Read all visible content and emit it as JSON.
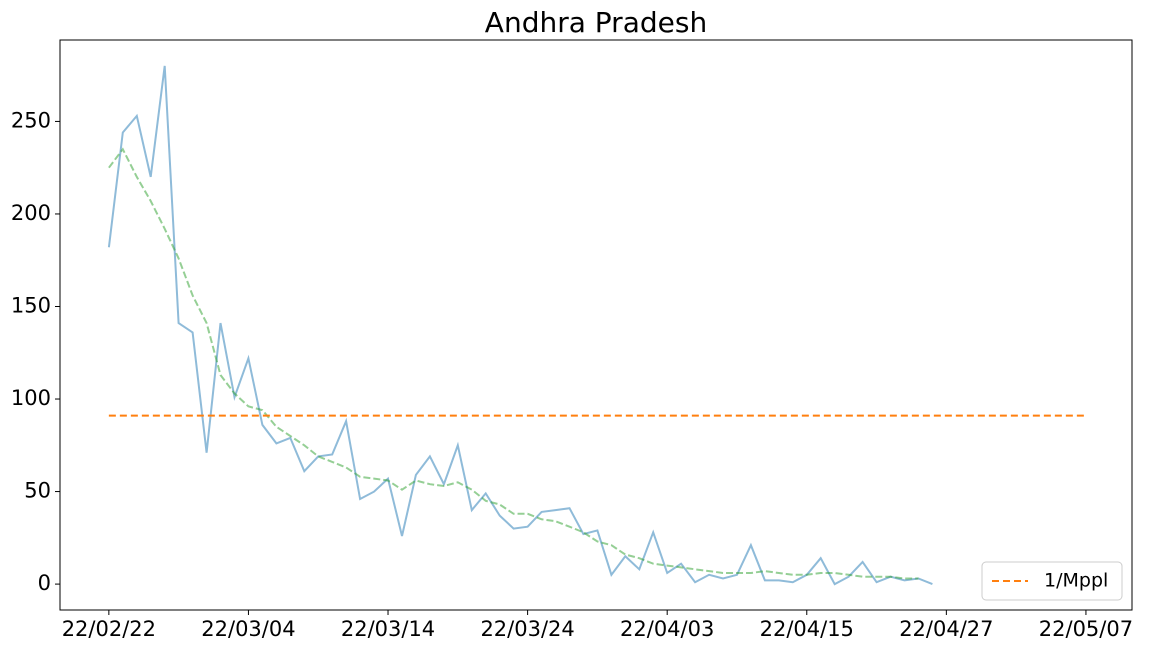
{
  "chart_data": {
    "type": "line",
    "title": "Andhra Pradesh",
    "x": [
      0,
      1,
      2,
      3,
      4,
      5,
      6,
      7,
      8,
      9,
      10,
      11,
      12,
      13,
      14,
      15,
      16,
      17,
      18,
      19,
      20,
      21,
      22,
      23,
      24,
      25,
      26,
      27,
      28,
      29,
      30,
      31,
      32,
      33,
      34,
      35,
      36,
      37,
      38,
      39,
      40,
      41,
      42,
      43,
      44,
      45,
      46,
      47,
      48,
      49,
      50,
      51,
      52,
      53,
      54,
      55,
      56,
      57,
      58,
      59
    ],
    "series": [
      {
        "color": "#1f77b4",
        "style": "solid",
        "values": [
          182,
          244,
          253,
          220,
          280,
          141,
          136,
          71,
          141,
          101,
          122,
          86,
          76,
          79,
          61,
          69,
          70,
          88,
          46,
          50,
          57,
          26,
          59,
          69,
          54,
          75,
          40,
          49,
          37,
          30,
          31,
          39,
          40,
          41,
          27,
          29,
          5,
          15,
          8,
          28,
          6,
          11,
          1,
          5,
          3,
          5,
          21,
          2,
          2,
          1,
          5,
          14,
          0,
          4,
          12,
          1,
          4,
          2,
          3,
          0
        ]
      },
      {
        "color": "#2ca02c",
        "style": "dashed",
        "values": [
          225,
          235,
          220,
          207,
          192,
          176,
          156,
          141,
          113,
          103,
          96,
          94,
          85,
          80,
          75,
          69,
          66,
          63,
          58,
          57,
          56,
          51,
          56,
          54,
          53,
          55,
          51,
          45,
          43,
          38,
          38,
          35,
          34,
          31,
          28,
          23,
          21,
          16,
          14,
          11,
          10,
          9,
          8,
          7,
          6,
          6,
          6,
          7,
          6,
          5,
          5,
          6,
          6,
          5,
          4,
          4,
          4,
          3,
          3,
          null
        ]
      }
    ],
    "hlines": [
      {
        "name": "1/Mppl",
        "value": 91,
        "xmin": 0,
        "xmax": 70,
        "color": "#ff7f0e"
      }
    ],
    "xlim": [
      -3.5,
      73.3
    ],
    "ylim": [
      -14,
      294
    ],
    "xticks": [
      {
        "value": 0,
        "label": "22/02/22"
      },
      {
        "value": 10,
        "label": "22/03/04"
      },
      {
        "value": 20,
        "label": "22/03/14"
      },
      {
        "value": 30,
        "label": "22/03/24"
      },
      {
        "value": 40,
        "label": "22/04/03"
      },
      {
        "value": 50,
        "label": "22/04/15"
      },
      {
        "value": 60,
        "label": "22/04/27"
      },
      {
        "value": 70,
        "label": "22/05/07"
      }
    ],
    "yticks": [
      0,
      50,
      100,
      150,
      200,
      250
    ],
    "grid": false,
    "legend": "lower right"
  }
}
